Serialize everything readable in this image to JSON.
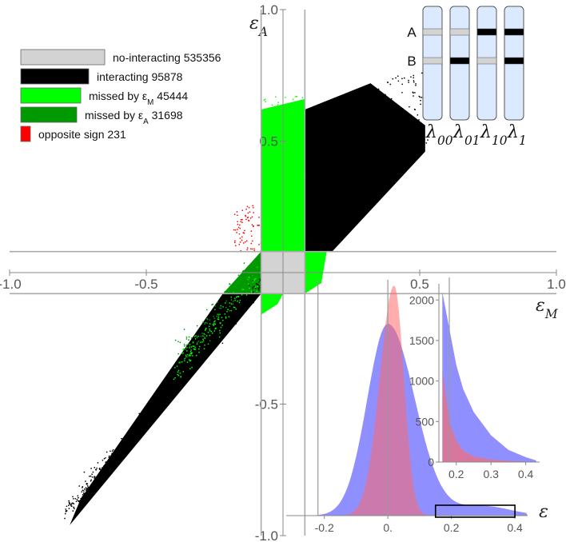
{
  "chart_data": [
    {
      "type": "scatter",
      "title": "",
      "xlabel": "ε_M",
      "ylabel": "ε_A",
      "xlim": [
        -1.0,
        1.0
      ],
      "ylim": [
        -1.0,
        1.0
      ],
      "x_ticks": [
        "-1.0",
        "-0.5",
        "0.5",
        "1.0"
      ],
      "y_ticks": [
        "1.0",
        "0.5",
        "-0.5",
        "-1.0"
      ],
      "x_tick_values": [
        -1.0,
        -0.5,
        0.5,
        1.0
      ],
      "y_tick_values": [
        1.0,
        0.5,
        -0.5,
        -1.0
      ],
      "threshold_lines": {
        "vertical_x": -0.08,
        "vertical_x2": 0.08,
        "horizontal_y": -0.08,
        "horizontal_y2": 0.08
      },
      "legend_placement": "top-left",
      "series": [
        {
          "name": "no-interacting",
          "count": "535356",
          "color": "#d3d3d3"
        },
        {
          "name": "interacting",
          "count": "95878",
          "color": "#000000"
        },
        {
          "name": "missed by ε_M",
          "count": "45444",
          "color": "#00ff00"
        },
        {
          "name": "missed by ε_A",
          "count": "31698",
          "color": "#009900"
        },
        {
          "name": "opposite sign",
          "count": "231",
          "color": "#ff0000"
        }
      ],
      "legend_labels": [
        {
          "text": "no-interacting 535356",
          "main": "no-interacting 535356",
          "sub": ""
        },
        {
          "text": "interacting 95878",
          "main": "interacting 95878",
          "sub": ""
        },
        {
          "text": "missed by ε_M 45444",
          "main": "missed by ε",
          "sub": "M",
          "tail": " 45444"
        },
        {
          "text": "missed by ε_A 31698",
          "main": "missed by ε",
          "sub": "A",
          "tail": " 31698"
        },
        {
          "text": "opposite sign 231",
          "main": "opposite sign 231",
          "sub": ""
        }
      ]
    },
    {
      "type": "bar",
      "title": "",
      "xlabel": "ε",
      "ylabel": "",
      "xlim": [
        -0.32,
        0.44
      ],
      "x_ticks": [
        "-0.2",
        "0.",
        "0.2",
        "0.4"
      ],
      "x_tick_values": [
        -0.2,
        0.0,
        0.2,
        0.4
      ],
      "highlight_box": {
        "x_range": [
          0.15,
          0.4
        ]
      },
      "series": [
        {
          "name": "",
          "color": "#6a6aff",
          "center": 0.0,
          "peak": 1.0,
          "width_left": 0.065,
          "width_right": 0.085
        },
        {
          "name": "",
          "color": "#ff6a6a",
          "center": 0.02,
          "peak": 1.2,
          "width_left": 0.045,
          "width_right": 0.03
        }
      ]
    },
    {
      "type": "bar",
      "title": "",
      "xlabel": "",
      "ylabel": "",
      "xlim": [
        0.15,
        0.44
      ],
      "ylim": [
        0,
        2200
      ],
      "x_ticks": [
        "0.2",
        "0.3",
        "0.4"
      ],
      "y_ticks": [
        "0",
        "500",
        "1000",
        "1500",
        "2000"
      ],
      "x_tick_values": [
        0.2,
        0.3,
        0.4
      ],
      "y_tick_values": [
        0,
        500,
        1000,
        1500,
        2000
      ],
      "series": [
        {
          "name": "",
          "color": "#6a6aff",
          "x": [
            0.16,
            0.18,
            0.2,
            0.22,
            0.25,
            0.3,
            0.35,
            0.4,
            0.43
          ],
          "values": [
            2100,
            1650,
            1200,
            900,
            620,
            330,
            150,
            60,
            20
          ]
        },
        {
          "name": "",
          "color": "#ff6a6a",
          "x": [
            0.16,
            0.18,
            0.2,
            0.22,
            0.25,
            0.3,
            0.35,
            0.4
          ],
          "values": [
            1050,
            500,
            260,
            140,
            70,
            30,
            15,
            8
          ]
        }
      ]
    }
  ],
  "diagram": {
    "row_labels": [
      "A",
      "B"
    ],
    "columns": [
      {
        "label": "λ",
        "sub": "00",
        "a_color": "#d3d3d3",
        "b_color": "#d3d3d3"
      },
      {
        "label": "λ",
        "sub": "01",
        "a_color": "#d3d3d3",
        "b_color": "#000000"
      },
      {
        "label": "λ",
        "sub": "10",
        "a_color": "#000000",
        "b_color": "#d3d3d3"
      },
      {
        "label": "λ",
        "sub": "1",
        "a_color": "#000000",
        "b_color": "#000000"
      }
    ],
    "chromosome_color": "#dbeaff"
  }
}
